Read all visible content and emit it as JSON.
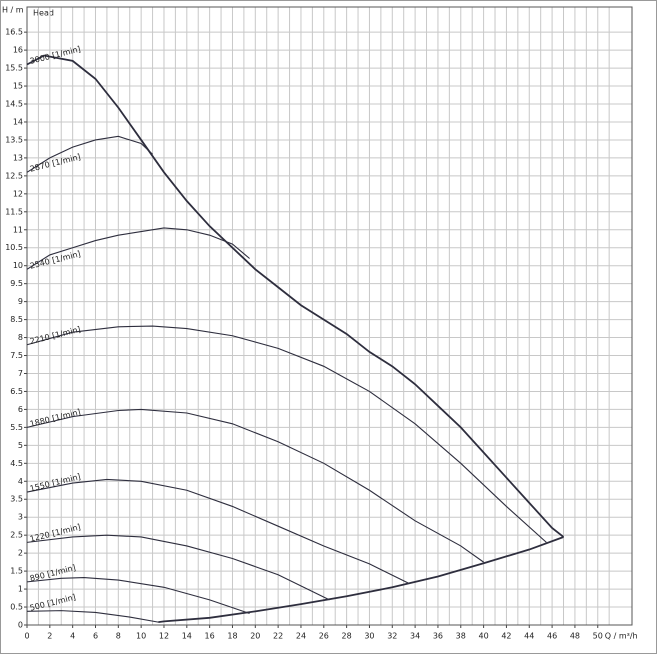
{
  "chart_data": {
    "type": "line",
    "y_label": "H / m",
    "title": "Head",
    "x_label": "Q / m³/h",
    "color": "#2e2e3e",
    "grid": true,
    "xlim": [
      0,
      53
    ],
    "ylim": [
      0,
      17.2
    ],
    "xticks": [
      0,
      2,
      4,
      6,
      8,
      10,
      12,
      14,
      16,
      18,
      20,
      22,
      24,
      26,
      28,
      30,
      32,
      34,
      36,
      38,
      40,
      42,
      44,
      46,
      48,
      50
    ],
    "yticks": [
      0,
      0.5,
      1,
      1.5,
      2,
      2.5,
      3,
      3.5,
      4,
      4.5,
      5,
      5.5,
      6,
      6.5,
      7,
      7.5,
      8,
      8.5,
      9,
      9.5,
      10,
      10.5,
      11,
      11.5,
      12,
      12.5,
      13,
      13.5,
      14,
      14.5,
      15,
      15.5,
      16,
      16.5
    ],
    "series": [
      {
        "x": [
          0,
          1.5,
          4,
          6,
          8,
          10,
          12,
          14,
          16,
          18,
          20,
          22,
          24,
          26,
          28,
          30,
          32,
          34,
          36,
          38,
          40,
          42,
          44,
          46,
          47
        ],
        "values": [
          15.6,
          15.85,
          15.7,
          15.2,
          14.4,
          13.5,
          12.6,
          11.8,
          11.1,
          10.5,
          9.9,
          9.4,
          8.9,
          8.5,
          8.1,
          7.6,
          7.2,
          6.7,
          6.1,
          5.5,
          4.8,
          4.1,
          3.4,
          2.7,
          2.45
        ]
      },
      {
        "x": [
          11.5,
          12,
          16,
          20,
          24,
          28,
          32,
          36,
          40,
          44,
          47
        ],
        "values": [
          0.08,
          0.1,
          0.2,
          0.38,
          0.58,
          0.8,
          1.05,
          1.35,
          1.72,
          2.1,
          2.45
        ]
      },
      {
        "name": "3000 [1/min]",
        "x": [
          0
        ],
        "values": [
          15.6
        ]
      },
      {
        "name": "2870 [1/min]",
        "x": [
          0,
          2,
          4,
          6,
          8,
          10,
          11
        ],
        "values": [
          12.6,
          13.0,
          13.3,
          13.5,
          13.6,
          13.4,
          13.1
        ]
      },
      {
        "name": "2540 [1/min]",
        "x": [
          0,
          2,
          4,
          6,
          8,
          10,
          12,
          14,
          16,
          18,
          19.5
        ],
        "values": [
          9.9,
          10.3,
          10.5,
          10.7,
          10.85,
          10.95,
          11.05,
          11.0,
          10.85,
          10.6,
          10.2
        ]
      },
      {
        "name": "2210 [1/min]",
        "x": [
          0,
          4,
          8,
          11,
          14,
          18,
          22,
          26,
          30,
          34,
          38,
          42,
          45.5
        ],
        "values": [
          7.8,
          8.15,
          8.3,
          8.32,
          8.25,
          8.05,
          7.7,
          7.2,
          6.5,
          5.6,
          4.5,
          3.3,
          2.3
        ]
      },
      {
        "name": "1880 [1/min]",
        "x": [
          0,
          4,
          8,
          10,
          14,
          18,
          22,
          26,
          30,
          34,
          38,
          40
        ],
        "values": [
          5.5,
          5.8,
          5.97,
          6.0,
          5.9,
          5.6,
          5.1,
          4.5,
          3.75,
          2.9,
          2.2,
          1.75
        ]
      },
      {
        "name": "1550 [1/min]",
        "x": [
          0,
          4,
          7,
          10,
          14,
          18,
          22,
          26,
          30,
          33.5
        ],
        "values": [
          3.7,
          3.95,
          4.05,
          4.0,
          3.75,
          3.3,
          2.75,
          2.2,
          1.7,
          1.15
        ]
      },
      {
        "name": "1220 [1/min]",
        "x": [
          0,
          4,
          7,
          10,
          14,
          18,
          22,
          26.5
        ],
        "values": [
          2.3,
          2.45,
          2.5,
          2.45,
          2.2,
          1.85,
          1.4,
          0.7
        ]
      },
      {
        "name": "890 [1/min]",
        "x": [
          0,
          3,
          5,
          8,
          12,
          16,
          19.5
        ],
        "values": [
          1.2,
          1.3,
          1.32,
          1.25,
          1.05,
          0.7,
          0.32
        ]
      },
      {
        "name": "500 [1/min]",
        "x": [
          0,
          3,
          6,
          9,
          11.5
        ],
        "values": [
          0.38,
          0.4,
          0.35,
          0.22,
          0.08
        ]
      }
    ]
  }
}
